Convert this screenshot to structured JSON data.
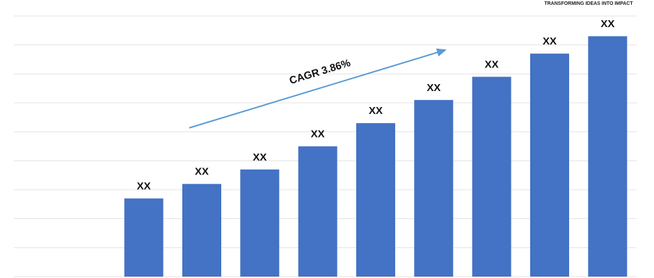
{
  "chart_data": {
    "type": "bar",
    "tagline": "TRANSFORMING IDEAS INTO IMPACT",
    "annotation": "CAGR 3.86%",
    "categories": [
      null,
      null,
      null,
      null,
      null,
      null,
      null,
      null,
      null
    ],
    "values": [
      2.7,
      3.2,
      3.7,
      4.5,
      5.3,
      6.1,
      6.9,
      7.7,
      8.3
    ],
    "value_labels": [
      "XX",
      "XX",
      "XX",
      "XX",
      "XX",
      "XX",
      "XX",
      "XX",
      "XX"
    ],
    "color": "#4472c4",
    "ylim": [
      0,
      9
    ],
    "yticks": [
      0,
      1,
      2,
      3,
      4,
      5,
      6,
      7,
      8,
      9
    ],
    "grid": true
  }
}
